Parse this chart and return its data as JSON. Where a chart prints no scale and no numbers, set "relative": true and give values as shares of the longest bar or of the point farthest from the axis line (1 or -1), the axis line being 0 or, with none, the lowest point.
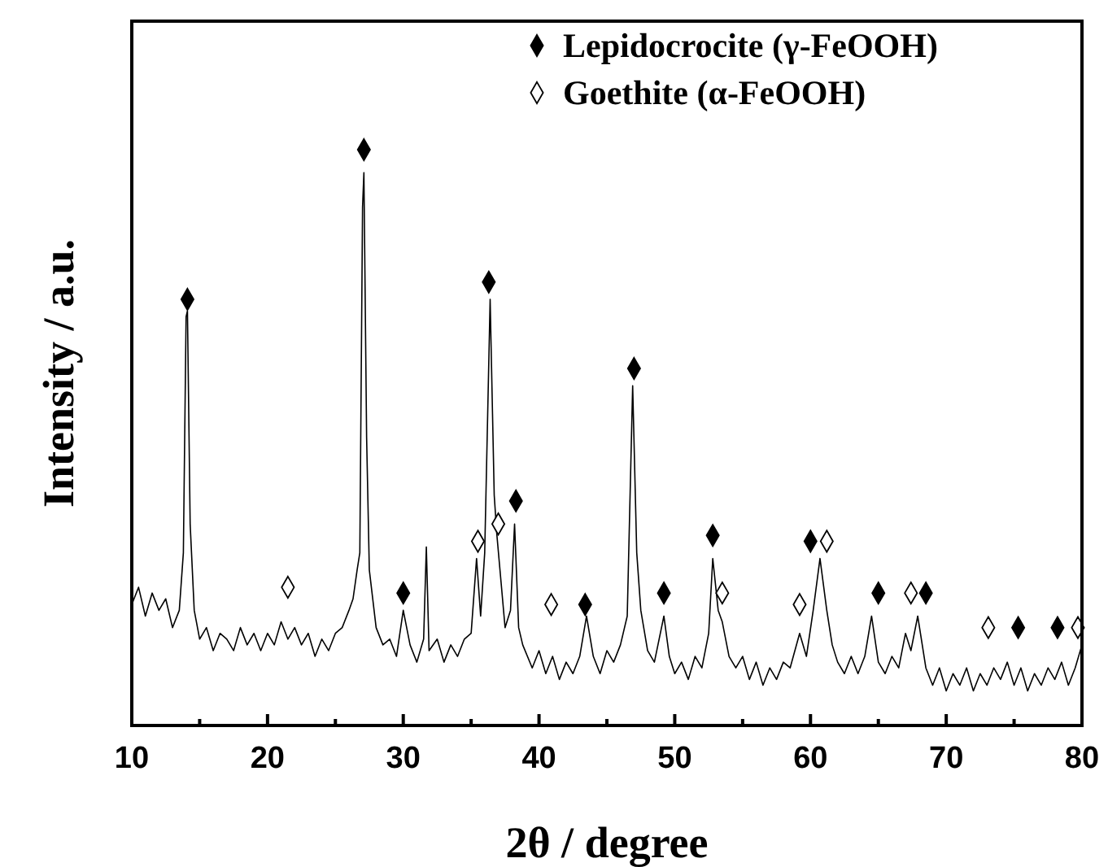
{
  "chart_data": {
    "type": "line",
    "relative": true,
    "xlabel": "2θ / degree",
    "ylabel": "Intensity / a.u.",
    "xlim": [
      10,
      80
    ],
    "xticks": [
      10,
      {
        "value": 15,
        "label": null
      },
      20,
      {
        "value": 25,
        "label": null
      },
      30,
      {
        "value": 35,
        "label": null
      },
      40,
      {
        "value": 45,
        "label": null
      },
      50,
      {
        "value": 55,
        "label": null
      },
      60,
      {
        "value": 65,
        "label": null
      },
      70,
      {
        "value": 75,
        "label": null
      },
      80
    ],
    "tick_labels": "x",
    "legend": "top right",
    "grid": false,
    "series": [
      {
        "color": "#000000",
        "x": [
          10,
          10.5,
          11,
          11.5,
          12,
          12.5,
          13,
          13.5,
          13.8,
          14.0,
          14.1,
          14.3,
          14.6,
          15,
          15.5,
          16,
          16.5,
          17,
          17.5,
          18,
          18.5,
          19,
          19.5,
          20,
          20.5,
          21,
          21.5,
          22,
          22.5,
          23,
          23.5,
          24,
          24.5,
          25,
          25.5,
          26,
          26.3,
          26.6,
          26.8,
          27.0,
          27.1,
          27.3,
          27.5,
          28,
          28.5,
          29,
          29.5,
          30.0,
          30.5,
          31,
          31.5,
          31.7,
          31.9,
          32.5,
          33,
          33.5,
          34,
          34.5,
          35,
          35.4,
          35.7,
          36.0,
          36.4,
          36.7,
          36.9,
          37.2,
          37.5,
          37.9,
          38.2,
          38.5,
          38.8,
          39.5,
          40,
          40.5,
          41,
          41.5,
          42,
          42.5,
          43,
          43.5,
          44,
          44.5,
          45,
          45.5,
          46,
          46.5,
          46.9,
          47.2,
          47.5,
          48,
          48.5,
          49.2,
          49.6,
          50,
          50.5,
          51,
          51.5,
          52,
          52.5,
          52.8,
          53.2,
          53.5,
          54,
          54.5,
          55,
          55.5,
          56,
          56.5,
          57,
          57.5,
          58,
          58.5,
          59.2,
          59.7,
          60.2,
          60.7,
          61.2,
          61.6,
          62,
          62.5,
          63,
          63.5,
          64,
          64.5,
          65.0,
          65.5,
          66,
          66.5,
          67,
          67.4,
          67.9,
          68.5,
          69,
          69.5,
          70,
          70.5,
          71,
          71.5,
          72,
          72.5,
          73,
          73.5,
          74,
          74.5,
          75,
          75.5,
          76,
          76.5,
          77,
          77.5,
          78,
          78.5,
          79,
          79.5,
          80
        ],
        "values": [
          0.21,
          0.24,
          0.19,
          0.23,
          0.2,
          0.22,
          0.17,
          0.2,
          0.3,
          0.71,
          0.72,
          0.35,
          0.2,
          0.15,
          0.17,
          0.13,
          0.16,
          0.15,
          0.13,
          0.17,
          0.14,
          0.16,
          0.13,
          0.16,
          0.14,
          0.18,
          0.15,
          0.17,
          0.14,
          0.16,
          0.12,
          0.15,
          0.13,
          0.16,
          0.17,
          0.2,
          0.22,
          0.27,
          0.3,
          0.9,
          0.96,
          0.5,
          0.27,
          0.17,
          0.14,
          0.15,
          0.12,
          0.2,
          0.14,
          0.11,
          0.15,
          0.31,
          0.13,
          0.15,
          0.11,
          0.14,
          0.12,
          0.15,
          0.16,
          0.29,
          0.19,
          0.3,
          0.74,
          0.4,
          0.33,
          0.25,
          0.17,
          0.2,
          0.35,
          0.17,
          0.14,
          0.1,
          0.13,
          0.09,
          0.12,
          0.08,
          0.11,
          0.09,
          0.12,
          0.19,
          0.12,
          0.09,
          0.13,
          0.11,
          0.14,
          0.19,
          0.59,
          0.3,
          0.2,
          0.13,
          0.11,
          0.19,
          0.12,
          0.09,
          0.11,
          0.08,
          0.12,
          0.1,
          0.16,
          0.29,
          0.2,
          0.18,
          0.12,
          0.1,
          0.12,
          0.08,
          0.11,
          0.07,
          0.1,
          0.08,
          0.11,
          0.1,
          0.16,
          0.12,
          0.2,
          0.29,
          0.2,
          0.14,
          0.11,
          0.09,
          0.12,
          0.09,
          0.12,
          0.19,
          0.11,
          0.09,
          0.12,
          0.1,
          0.16,
          0.13,
          0.19,
          0.1,
          0.07,
          0.1,
          0.06,
          0.09,
          0.07,
          0.1,
          0.06,
          0.09,
          0.07,
          0.1,
          0.08,
          0.11,
          0.07,
          0.1,
          0.06,
          0.09,
          0.07,
          0.1,
          0.08,
          0.11,
          0.07,
          0.1,
          0.14
        ]
      },
      {
        "type": "scatter",
        "name": "Lepidocrocite (γ-FeOOH)",
        "color": "#000000",
        "marker": "diamond",
        "x": [
          14.1,
          27.1,
          30.0,
          36.3,
          38.3,
          43.4,
          47.0,
          49.2,
          52.8,
          60.0,
          65.0,
          68.5,
          75.3,
          78.2
        ],
        "values": [
          0.74,
          1.0,
          0.23,
          0.77,
          0.39,
          0.21,
          0.62,
          0.23,
          0.33,
          0.32,
          0.23,
          0.23,
          0.17,
          0.17
        ]
      },
      {
        "type": "scatter",
        "name": "Goethite (α-FeOOH)",
        "color": "#ffffff",
        "marker": "diamond",
        "x": [
          21.5,
          35.5,
          37.0,
          40.9,
          53.5,
          59.2,
          61.2,
          67.4,
          73.1,
          79.7
        ],
        "values": [
          0.24,
          0.32,
          0.35,
          0.21,
          0.23,
          0.21,
          0.32,
          0.23,
          0.17,
          0.17
        ]
      }
    ]
  }
}
